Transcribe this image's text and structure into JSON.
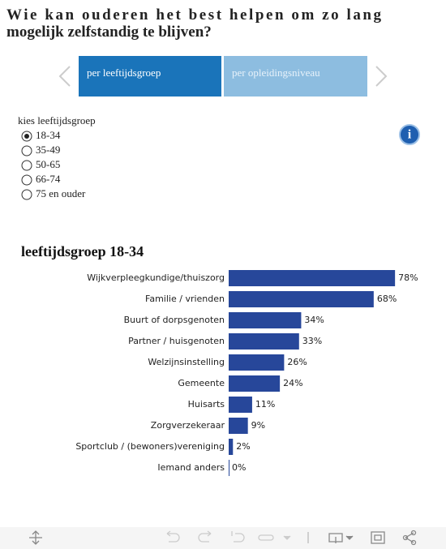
{
  "header": {
    "title": "Wie kan ouderen het best helpen om zo lang mogelijk zelfstandig te blijven?"
  },
  "tabs": [
    "per leeftijdsgroep",
    "per opleidingsniveau"
  ],
  "filter": {
    "label": "kies leeftijdsgroep",
    "options": [
      "18-34",
      "35-49",
      "50-65",
      "66-74",
      "75 en ouder"
    ],
    "selected": 0
  },
  "chart_data": {
    "type": "hbar",
    "title": "leeftijdsgroep 18-34",
    "categories": [
      "Wijkverpleegkundige/thuiszorg",
      "Familie / vrienden",
      "Buurt of dorpsgenoten",
      "Partner / huisgenoten",
      "Welzijnsinstelling",
      "Gemeente",
      "Huisarts",
      "Zorgverzekeraar",
      "Sportclub / (bewoners)vereniging",
      "Iemand anders"
    ],
    "values": [
      78,
      68,
      34,
      33,
      26,
      24,
      11,
      9,
      2,
      0
    ],
    "value_labels": [
      "78%",
      "68%",
      "34%",
      "33%",
      "26%",
      "24%",
      "11%",
      "9%",
      "2%",
      "0%"
    ],
    "color": "#27479a"
  }
}
